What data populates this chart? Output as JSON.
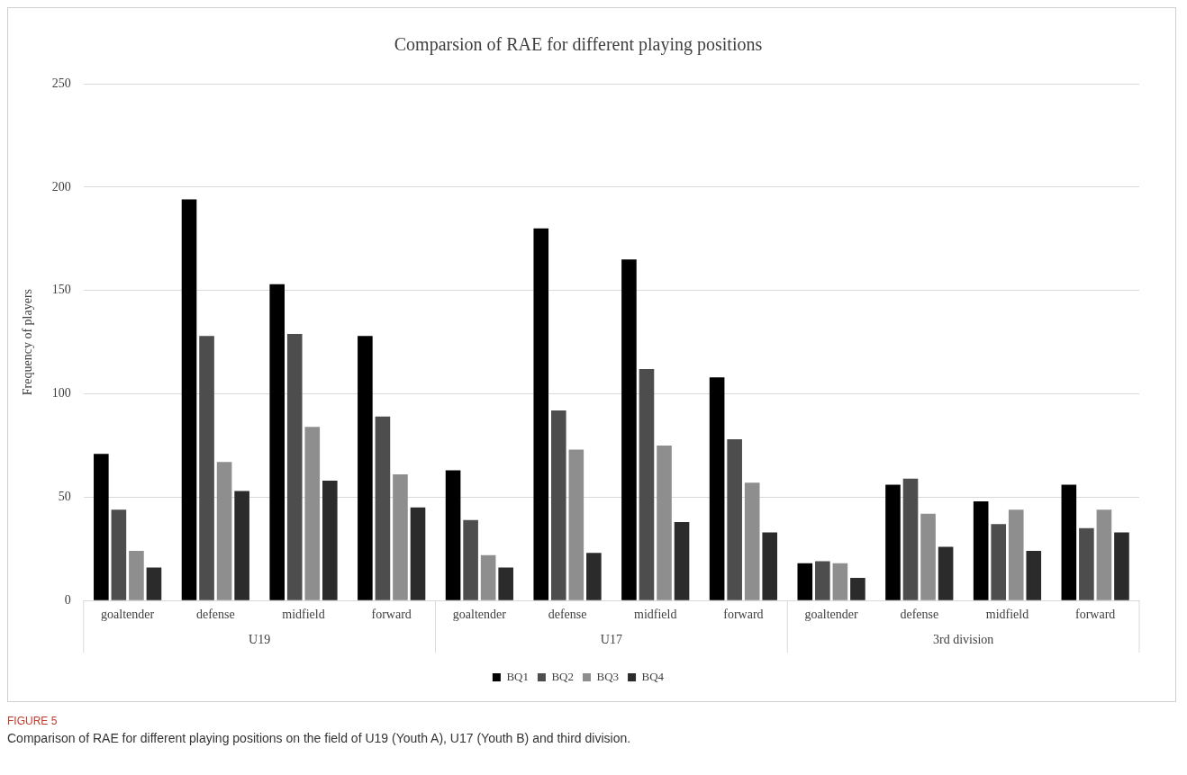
{
  "chart_data": {
    "type": "bar",
    "title": "Comparsion of RAE for different playing positions",
    "ylabel": "Frequency of players",
    "categories": [
      "goaltender",
      "defense",
      "midfield",
      "forward",
      "goaltender",
      "defense",
      "midfield",
      "forward",
      "goaltender",
      "defense",
      "midfield",
      "forward"
    ],
    "annotations": [
      "U19",
      "U17",
      "3rd division",
      "FIGURE 5",
      "Comparison of RAE for different playing positions on the field of U19 (Youth A), U17 (Youth B) and third division."
    ],
    "series": [
      {
        "name": "BQ1",
        "color": "#000000",
        "values": [
          71,
          194,
          153,
          128,
          63,
          180,
          165,
          108,
          18,
          56,
          48,
          56
        ]
      },
      {
        "name": "BQ2",
        "color": "#4d4d4d",
        "values": [
          44,
          128,
          129,
          89,
          39,
          92,
          112,
          78,
          19,
          59,
          37,
          35
        ]
      },
      {
        "name": "BQ3",
        "color": "#8e8e8e",
        "values": [
          24,
          67,
          84,
          61,
          22,
          73,
          75,
          57,
          18,
          42,
          44,
          44
        ]
      },
      {
        "name": "BQ4",
        "color": "#2b2b2b",
        "values": [
          16,
          53,
          58,
          45,
          16,
          23,
          38,
          33,
          11,
          26,
          24,
          33
        ]
      }
    ],
    "ylim": [
      0,
      250
    ],
    "yticks": [
      0,
      50,
      100,
      150,
      200,
      250
    ],
    "grid": "y",
    "legend": "bottom"
  }
}
